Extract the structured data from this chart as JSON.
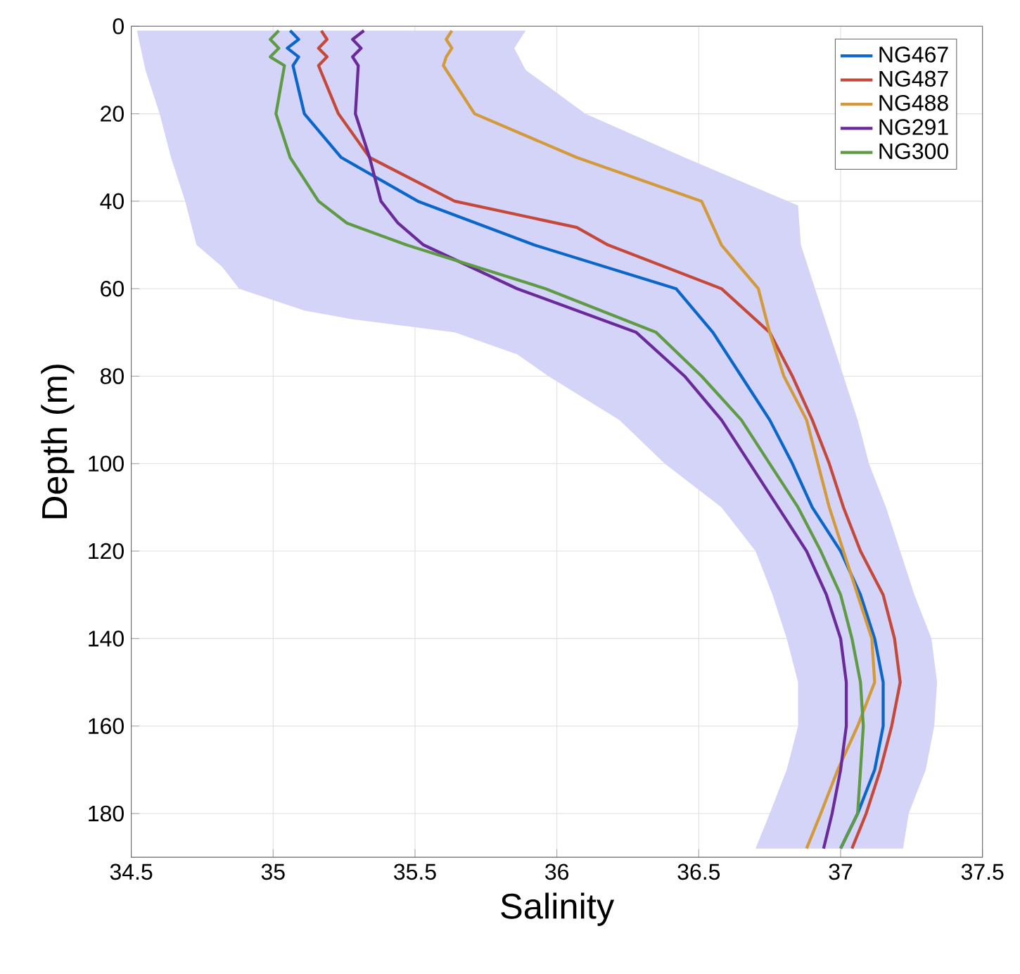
{
  "chart_data": {
    "type": "line",
    "xlabel": "Salinity",
    "ylabel": "Depth (m)",
    "xlim": [
      34.5,
      37.5
    ],
    "xticks": [
      34.5,
      35,
      35.5,
      36,
      36.5,
      37,
      37.5
    ],
    "ylim": [
      190,
      0
    ],
    "yticks": [
      0,
      20,
      40,
      60,
      80,
      100,
      120,
      140,
      160,
      180
    ],
    "grid": true,
    "legend": "top right",
    "line_style": "solid",
    "marker": "none",
    "series": [
      {
        "type": "area",
        "color": "#d4d4f8",
        "x": [
          34.52,
          34.55,
          34.6,
          34.64,
          34.69,
          34.73,
          34.82,
          34.88,
          35.11,
          35.28,
          35.64,
          35.86,
          35.97,
          36.22,
          36.38,
          36.58,
          36.7,
          36.76,
          36.81,
          36.85,
          36.85,
          36.81,
          36.75,
          36.7,
          37.22,
          37.24,
          37.3,
          37.33,
          37.34,
          37.32,
          37.26,
          37.21,
          37.16,
          37.1,
          37.06,
          37.01,
          36.96,
          36.91,
          36.86,
          36.85,
          36.45,
          36.1,
          35.89,
          35.85,
          35.89
        ],
        "values": [
          1,
          10,
          20,
          30,
          40,
          50,
          55,
          60,
          65,
          67,
          70,
          75,
          80,
          90,
          100,
          110,
          120,
          130,
          140,
          150,
          160,
          170,
          180,
          188,
          188,
          180,
          170,
          160,
          150,
          140,
          130,
          120,
          110,
          100,
          90,
          80,
          70,
          60,
          50,
          41,
          30,
          20,
          10,
          5,
          1
        ]
      },
      {
        "name": "NG467",
        "color": "#0a66c8",
        "x": [
          35.06,
          35.09,
          35.05,
          35.09,
          35.07,
          35.11,
          35.24,
          35.51,
          35.92,
          36.42,
          36.55,
          36.65,
          36.75,
          36.83,
          36.9,
          37.0,
          37.07,
          37.12,
          37.15,
          37.15,
          37.12,
          37.06,
          37.0
        ],
        "values": [
          1,
          3,
          5,
          7,
          9,
          20,
          30,
          40,
          50,
          60,
          70,
          80,
          90,
          100,
          110,
          120,
          130,
          140,
          150,
          160,
          170,
          180,
          188
        ]
      },
      {
        "name": "NG487",
        "color": "#c5493a",
        "x": [
          35.17,
          35.19,
          35.16,
          35.19,
          35.16,
          35.23,
          35.34,
          35.64,
          36.07,
          36.18,
          36.58,
          36.75,
          36.83,
          36.9,
          36.96,
          37.01,
          37.07,
          37.15,
          37.19,
          37.21,
          37.18,
          37.14,
          37.09,
          37.04
        ],
        "values": [
          1,
          3,
          5,
          7,
          9,
          20,
          30,
          40,
          46,
          50,
          60,
          70,
          80,
          90,
          100,
          110,
          120,
          130,
          140,
          150,
          160,
          170,
          180,
          188
        ]
      },
      {
        "name": "NG488",
        "color": "#d39a3c",
        "x": [
          35.63,
          35.61,
          35.63,
          35.61,
          35.6,
          35.71,
          36.07,
          36.51,
          36.58,
          36.71,
          36.75,
          36.8,
          36.88,
          36.92,
          36.96,
          37.01,
          37.06,
          37.11,
          37.12,
          37.06,
          36.99,
          36.93,
          36.88
        ],
        "values": [
          1,
          3,
          5,
          7,
          9,
          20,
          30,
          40,
          50,
          60,
          70,
          80,
          90,
          100,
          110,
          120,
          130,
          140,
          150,
          160,
          170,
          180,
          188
        ]
      },
      {
        "name": "NG291",
        "color": "#6a2a9a",
        "x": [
          35.32,
          35.28,
          35.31,
          35.28,
          35.3,
          35.29,
          35.34,
          35.38,
          35.44,
          35.53,
          35.86,
          36.28,
          36.45,
          36.58,
          36.68,
          36.78,
          36.88,
          36.95,
          37.0,
          37.02,
          37.02,
          37.0,
          36.97,
          36.94
        ],
        "values": [
          1,
          3,
          5,
          7,
          9,
          20,
          30,
          40,
          45,
          50,
          60,
          70,
          80,
          90,
          100,
          110,
          120,
          130,
          140,
          150,
          160,
          170,
          180,
          188
        ]
      },
      {
        "name": "NG300",
        "color": "#5f9a45",
        "x": [
          35.02,
          34.99,
          35.02,
          34.99,
          35.04,
          35.01,
          35.06,
          35.16,
          35.26,
          35.47,
          35.96,
          36.35,
          36.51,
          36.65,
          36.75,
          36.85,
          36.93,
          37.0,
          37.04,
          37.07,
          37.08,
          37.07,
          37.06,
          37.0
        ],
        "values": [
          1,
          3,
          5,
          7,
          9,
          20,
          30,
          40,
          45,
          50,
          60,
          70,
          80,
          90,
          100,
          110,
          120,
          130,
          140,
          150,
          160,
          170,
          180,
          188
        ]
      }
    ]
  }
}
